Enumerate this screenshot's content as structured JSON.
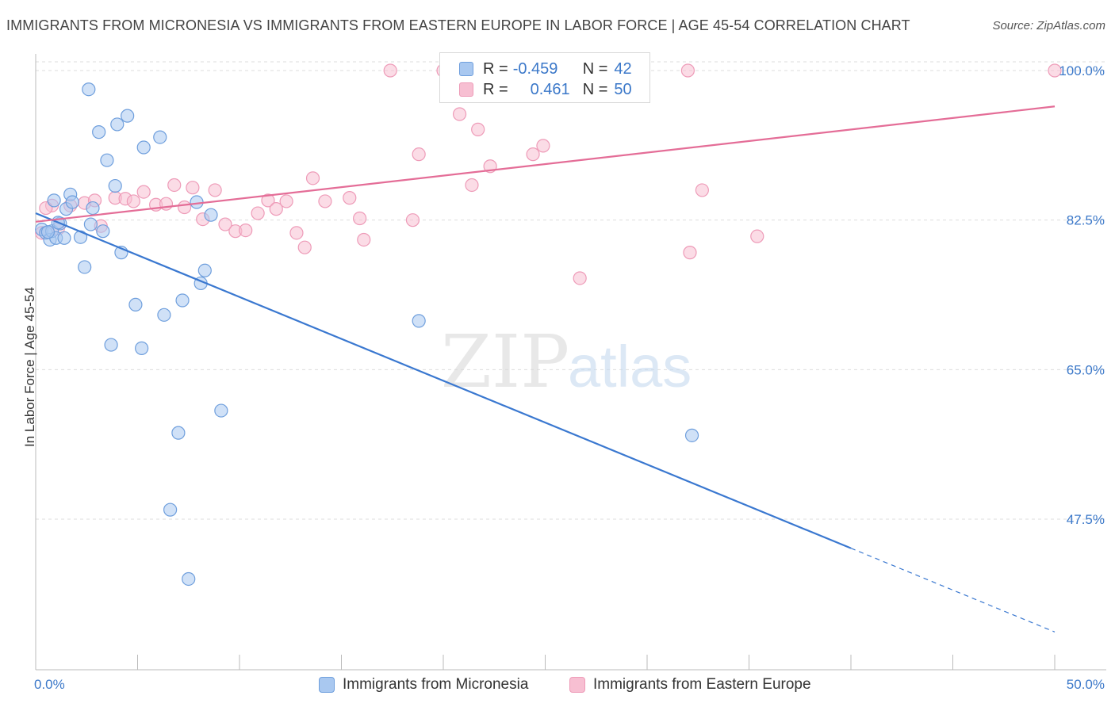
{
  "title": "IMMIGRANTS FROM MICRONESIA VS IMMIGRANTS FROM EASTERN EUROPE IN LABOR FORCE | AGE 45-54 CORRELATION CHART",
  "source": "Source: ZipAtlas.com",
  "watermark": {
    "zip": "ZIP",
    "atlas": "atlas"
  },
  "legend": {
    "micronesia": {
      "r_label": "R =",
      "r_value": "-0.459",
      "n_label": "N =",
      "n_value": "42"
    },
    "eastern_europe": {
      "r_label": "R =",
      "r_value": "0.461",
      "n_label": "N =",
      "n_value": "50"
    }
  },
  "bottom_legend": {
    "micronesia": "Immigrants from Micronesia",
    "eastern_europe": "Immigrants from Eastern Europe"
  },
  "colors": {
    "micronesia_fill": "#a9c8f0",
    "micronesia_stroke": "#6f9fdd",
    "micronesia_line": "#3a78d0",
    "eastern_fill": "#f7bfd2",
    "eastern_stroke": "#ee9bb8",
    "eastern_line": "#e46d97",
    "tick_label": "#3b78c9",
    "grid": "#dddddd"
  },
  "chart_data": {
    "type": "scatter",
    "title": "IMMIGRANTS FROM MICRONESIA VS IMMIGRANTS FROM EASTERN EUROPE IN LABOR FORCE | AGE 45-54 CORRELATION CHART",
    "xlabel": "",
    "ylabel": "In Labor Force | Age 45-54",
    "xlim": [
      0,
      50
    ],
    "ylim": [
      32,
      102
    ],
    "x_tick_labels": [
      "0.0%",
      "50.0%"
    ],
    "y_ticks": [
      47.5,
      65.0,
      82.5,
      100.0
    ],
    "y_tick_labels": [
      "47.5%",
      "65.0%",
      "82.5%",
      "100.0%"
    ],
    "grid": true,
    "legend_position": "top-center",
    "series": [
      {
        "name": "Immigrants from Micronesia",
        "color": "#a9c8f0",
        "points": [
          [
            0.3,
            81.4
          ],
          [
            0.5,
            81.0
          ],
          [
            0.7,
            80.2
          ],
          [
            0.8,
            81.2
          ],
          [
            0.9,
            84.8
          ],
          [
            1.0,
            80.4
          ],
          [
            1.2,
            82.1
          ],
          [
            1.4,
            80.4
          ],
          [
            1.5,
            83.8
          ],
          [
            1.7,
            85.5
          ],
          [
            1.8,
            84.6
          ],
          [
            2.2,
            80.5
          ],
          [
            2.4,
            77.0
          ],
          [
            2.6,
            97.8
          ],
          [
            2.7,
            82.0
          ],
          [
            2.8,
            83.9
          ],
          [
            3.1,
            92.8
          ],
          [
            3.3,
            81.2
          ],
          [
            3.5,
            89.5
          ],
          [
            3.7,
            67.9
          ],
          [
            3.9,
            86.5
          ],
          [
            4.0,
            93.7
          ],
          [
            4.2,
            78.7
          ],
          [
            4.5,
            94.7
          ],
          [
            4.9,
            72.6
          ],
          [
            5.2,
            67.5
          ],
          [
            5.3,
            91.0
          ],
          [
            6.1,
            92.2
          ],
          [
            6.3,
            71.4
          ],
          [
            6.6,
            48.6
          ],
          [
            7.0,
            57.6
          ],
          [
            7.2,
            73.1
          ],
          [
            7.5,
            40.5
          ],
          [
            7.9,
            84.6
          ],
          [
            8.1,
            75.1
          ],
          [
            8.3,
            76.6
          ],
          [
            8.6,
            83.1
          ],
          [
            9.1,
            60.2
          ],
          [
            18.8,
            70.7
          ],
          [
            32.2,
            57.3
          ],
          [
            0.6,
            81.1
          ],
          [
            1.1,
            82.2
          ]
        ]
      },
      {
        "name": "Immigrants from Eastern Europe",
        "color": "#f7bfd2",
        "points": [
          [
            0.3,
            81.0
          ],
          [
            0.8,
            84.2
          ],
          [
            1.1,
            81.5
          ],
          [
            1.7,
            84.2
          ],
          [
            2.4,
            84.5
          ],
          [
            2.9,
            84.8
          ],
          [
            3.2,
            81.8
          ],
          [
            3.9,
            85.1
          ],
          [
            4.4,
            85.0
          ],
          [
            4.8,
            84.7
          ],
          [
            5.3,
            85.8
          ],
          [
            5.9,
            84.3
          ],
          [
            6.4,
            84.4
          ],
          [
            6.8,
            86.6
          ],
          [
            7.3,
            84.0
          ],
          [
            7.7,
            86.3
          ],
          [
            8.2,
            82.6
          ],
          [
            8.8,
            86.0
          ],
          [
            9.3,
            82.0
          ],
          [
            9.8,
            81.2
          ],
          [
            10.3,
            81.3
          ],
          [
            10.9,
            83.3
          ],
          [
            11.4,
            84.8
          ],
          [
            11.8,
            83.8
          ],
          [
            12.3,
            84.7
          ],
          [
            12.8,
            81.0
          ],
          [
            13.2,
            79.3
          ],
          [
            13.6,
            87.4
          ],
          [
            14.2,
            84.7
          ],
          [
            15.4,
            85.1
          ],
          [
            15.9,
            82.7
          ],
          [
            16.1,
            80.2
          ],
          [
            17.4,
            100.0
          ],
          [
            18.5,
            82.5
          ],
          [
            18.8,
            90.2
          ],
          [
            20.0,
            100.0
          ],
          [
            20.8,
            94.9
          ],
          [
            21.4,
            86.6
          ],
          [
            21.7,
            93.1
          ],
          [
            22.3,
            88.8
          ],
          [
            24.4,
            90.2
          ],
          [
            24.9,
            91.2
          ],
          [
            26.7,
            75.7
          ],
          [
            29.8,
            100.0
          ],
          [
            32.0,
            100.0
          ],
          [
            32.1,
            78.7
          ],
          [
            32.7,
            86.0
          ],
          [
            35.4,
            80.6
          ],
          [
            50.0,
            100.0
          ],
          [
            0.5,
            83.9
          ]
        ]
      }
    ],
    "trend_lines": [
      {
        "name": "Immigrants from Micronesia",
        "x": [
          0,
          40
        ],
        "y": [
          83.3,
          44.1
        ],
        "dashed_extension_x": [
          40,
          50
        ],
        "dashed_extension_y": [
          44.1,
          34.3
        ]
      },
      {
        "name": "Immigrants from Eastern Europe",
        "x": [
          0,
          50
        ],
        "y": [
          82.3,
          95.8
        ]
      }
    ]
  }
}
